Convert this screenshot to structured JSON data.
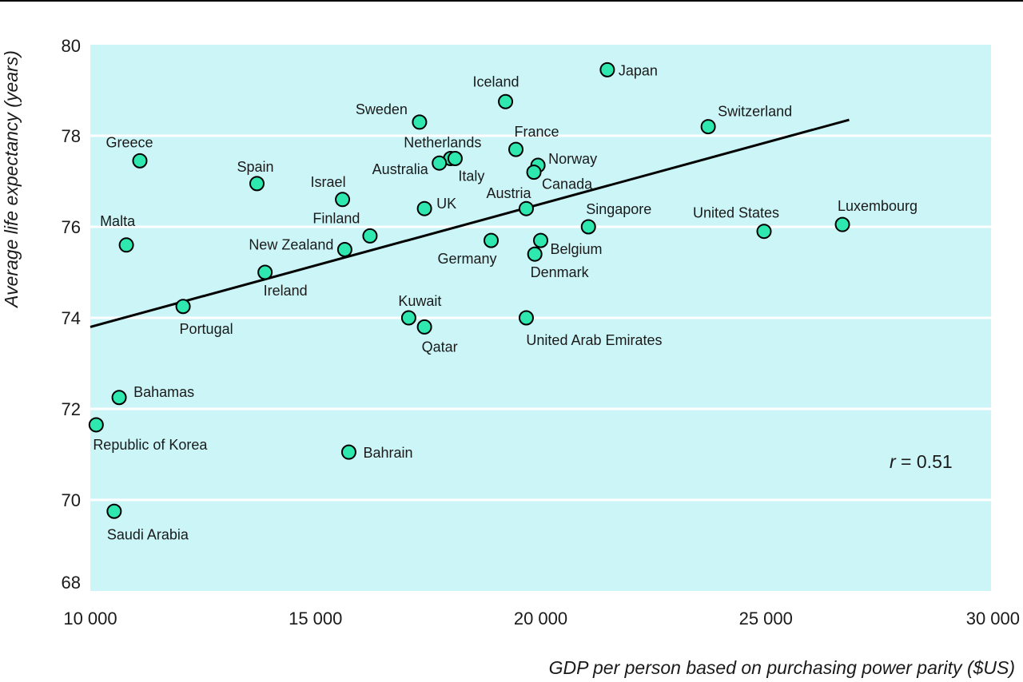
{
  "chart_data": {
    "type": "scatter",
    "xlabel": "GDP per person based on purchasing power parity ($US)",
    "ylabel": "Average life expectancy (years)",
    "xlim": [
      10000,
      30000
    ],
    "ylim": [
      68,
      80
    ],
    "xticks": [
      10000,
      15000,
      20000,
      25000,
      30000
    ],
    "xtick_labels": [
      "10 000",
      "15 000",
      "20 000",
      "25 000",
      "30 000"
    ],
    "yticks": [
      68,
      70,
      72,
      74,
      76,
      78,
      80
    ],
    "ytick_labels": [
      "68",
      "70",
      "72",
      "74",
      "76",
      "78",
      "80"
    ],
    "grid": "horizontal",
    "background_color": "#ccf5f7",
    "marker_color": "#2ee8b0",
    "annotation": {
      "r_label": "r",
      "r_value": " = 0.51"
    },
    "trendline": {
      "x": [
        10000,
        26850
      ],
      "y": [
        73.8,
        78.35
      ]
    },
    "points": [
      {
        "label": "Japan",
        "x": 21480,
        "y": 79.45
      },
      {
        "label": "Iceland",
        "x": 19220,
        "y": 78.75
      },
      {
        "label": "Sweden",
        "x": 17310,
        "y": 78.3
      },
      {
        "label": "Switzerland",
        "x": 23720,
        "y": 78.2
      },
      {
        "label": "France",
        "x": 19450,
        "y": 77.7
      },
      {
        "label": "Greece",
        "x": 11100,
        "y": 77.45
      },
      {
        "label": "Netherlands",
        "x": 18000,
        "y": 77.5
      },
      {
        "label": "Italy",
        "x": 18100,
        "y": 77.5
      },
      {
        "label": "Australia",
        "x": 17750,
        "y": 77.4
      },
      {
        "label": "Norway",
        "x": 19940,
        "y": 77.35
      },
      {
        "label": "Canada",
        "x": 19850,
        "y": 77.2
      },
      {
        "label": "Spain",
        "x": 13700,
        "y": 76.95
      },
      {
        "label": "Israel",
        "x": 15600,
        "y": 76.6
      },
      {
        "label": "UK",
        "x": 17420,
        "y": 76.4
      },
      {
        "label": "Austria",
        "x": 19680,
        "y": 76.4
      },
      {
        "label": "Singapore",
        "x": 21060,
        "y": 76.0
      },
      {
        "label": "Luxembourg",
        "x": 26700,
        "y": 76.05
      },
      {
        "label": "United States",
        "x": 24960,
        "y": 75.9
      },
      {
        "label": "Finland",
        "x": 16210,
        "y": 75.8
      },
      {
        "label": "Malta",
        "x": 10800,
        "y": 75.6
      },
      {
        "label": "Germany",
        "x": 18900,
        "y": 75.7
      },
      {
        "label": "Belgium",
        "x": 20000,
        "y": 75.7
      },
      {
        "label": "New Zealand",
        "x": 15650,
        "y": 75.5
      },
      {
        "label": "Denmark",
        "x": 19870,
        "y": 75.4
      },
      {
        "label": "Ireland",
        "x": 13880,
        "y": 75.0
      },
      {
        "label": "Portugal",
        "x": 12060,
        "y": 74.25
      },
      {
        "label": "Kuwait",
        "x": 17070,
        "y": 74.0
      },
      {
        "label": "United Arab Emirates",
        "x": 19680,
        "y": 74.0
      },
      {
        "label": "Qatar",
        "x": 17420,
        "y": 73.8
      },
      {
        "label": "Bahamas",
        "x": 10640,
        "y": 72.25
      },
      {
        "label": "Republic of Korea",
        "x": 10130,
        "y": 71.65
      },
      {
        "label": "Bahrain",
        "x": 15740,
        "y": 71.05
      },
      {
        "label": "Saudi Arabia",
        "x": 10530,
        "y": 69.75
      }
    ]
  }
}
